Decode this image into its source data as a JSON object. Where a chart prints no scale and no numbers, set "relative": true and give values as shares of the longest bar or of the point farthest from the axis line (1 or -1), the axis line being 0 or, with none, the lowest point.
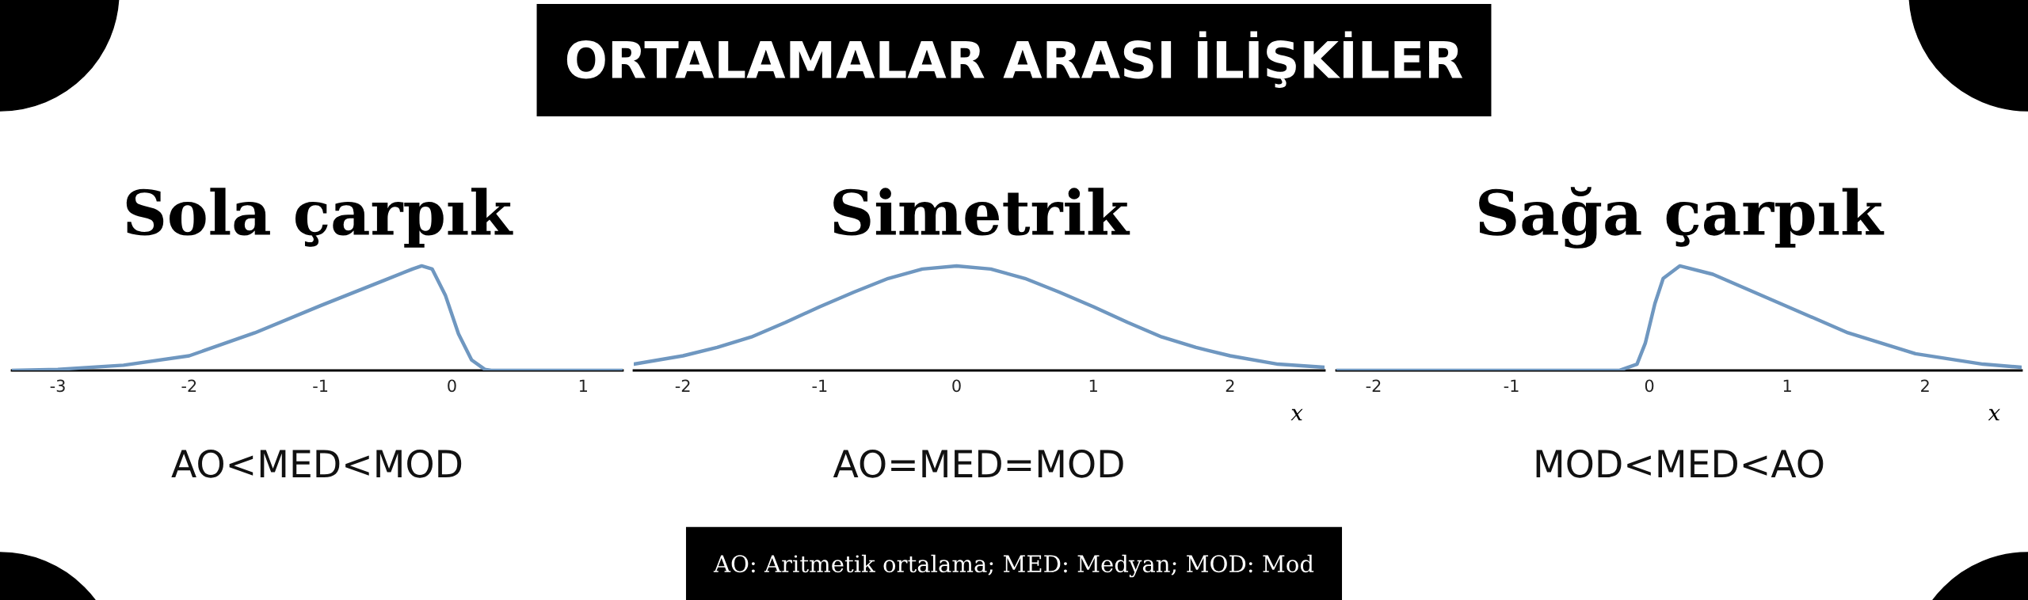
{
  "chart_data": [
    {
      "type": "line",
      "title": "Sola çarpık",
      "relative": true,
      "xlim": [
        -3.35,
        1.3
      ],
      "xticks": [
        -3,
        -2,
        -1,
        0,
        1
      ],
      "grid": false,
      "legend": false,
      "tick_labels": "x",
      "annotations": [
        "AO<MED<MOD",
        "ORTALAMALAR ARASI İLİŞKİLER"
      ],
      "series": [
        {
          "color": "#6f97c0",
          "x": [
            -3.35,
            -3.0,
            -2.5,
            -2.0,
            -1.5,
            -1.0,
            -0.5,
            -0.3,
            -0.23,
            -0.15,
            -0.05,
            0.05,
            0.15,
            0.25,
            0.3,
            1.3
          ],
          "values": [
            0,
            0.01,
            0.05,
            0.14,
            0.36,
            0.62,
            0.87,
            0.97,
            1,
            0.97,
            0.72,
            0.35,
            0.1,
            0.01,
            0,
            0
          ]
        }
      ]
    },
    {
      "type": "line",
      "title": "Simetrik",
      "relative": true,
      "xlabel": "x",
      "xlim": [
        -2.36,
        2.69
      ],
      "xticks": [
        -2,
        -1,
        0,
        1,
        2
      ],
      "grid": false,
      "legend": false,
      "tick_labels": "x",
      "annotations": [
        "AO=MED=MOD",
        "AO: Aritmetik ortalama; MED: Medyan; MOD: Mod"
      ],
      "series": [
        {
          "color": "#6f97c0",
          "x": [
            -2.36,
            -2.0,
            -1.75,
            -1.5,
            -1.25,
            -1.0,
            -0.75,
            -0.5,
            -0.25,
            0,
            0.25,
            0.5,
            0.75,
            1.0,
            1.25,
            1.5,
            1.75,
            2.0,
            2.35,
            2.69
          ],
          "values": [
            0.06,
            0.14,
            0.22,
            0.32,
            0.46,
            0.61,
            0.75,
            0.88,
            0.97,
            1,
            0.97,
            0.88,
            0.75,
            0.61,
            0.46,
            0.32,
            0.22,
            0.14,
            0.06,
            0.03
          ]
        }
      ]
    },
    {
      "type": "line",
      "title": "Sağa çarpık",
      "relative": true,
      "xlabel": "x",
      "xlim": [
        -2.27,
        2.7
      ],
      "xticks": [
        -2,
        -1,
        0,
        1,
        2
      ],
      "grid": false,
      "legend": false,
      "tick_labels": "x",
      "annotations": [
        "MOD<MED<AO"
      ],
      "series": [
        {
          "color": "#6f97c0",
          "x": [
            -2.27,
            -0.22,
            -0.09,
            -0.03,
            0.04,
            0.1,
            0.22,
            0.46,
            0.95,
            1.44,
            1.93,
            2.42,
            2.7
          ],
          "values": [
            0,
            0,
            0.06,
            0.26,
            0.64,
            0.88,
            1,
            0.92,
            0.64,
            0.36,
            0.16,
            0.06,
            0.03
          ]
        }
      ]
    }
  ]
}
